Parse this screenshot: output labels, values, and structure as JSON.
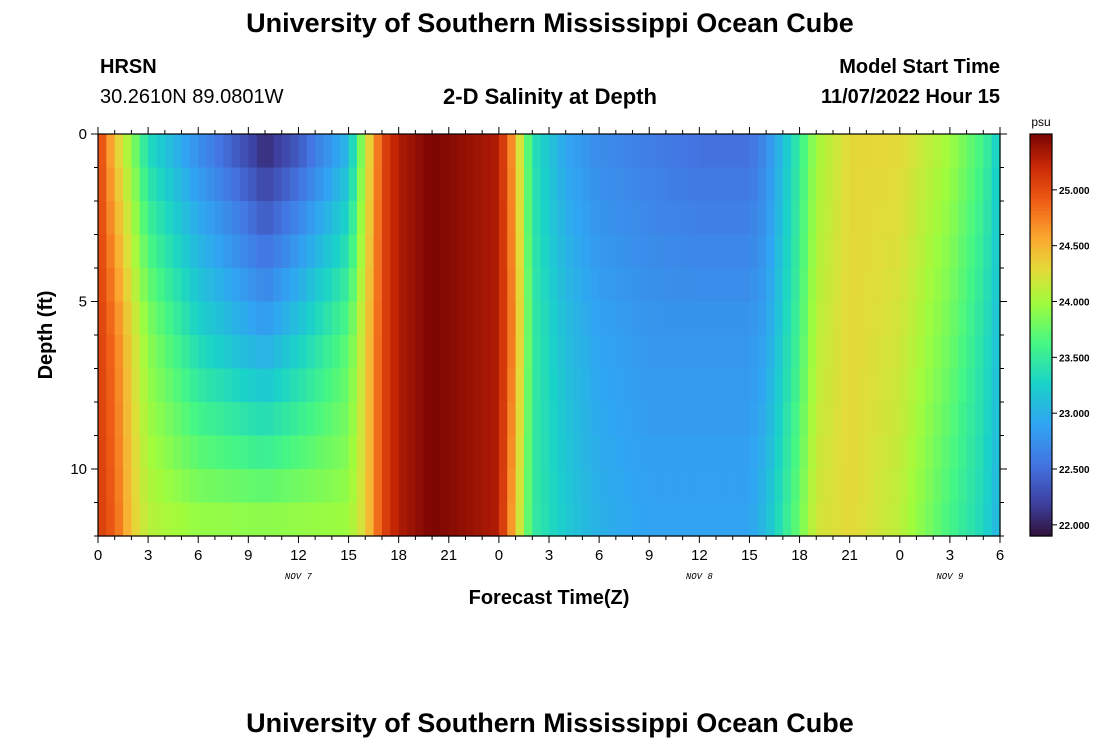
{
  "title": "University of Southern Mississippi Ocean Cube",
  "footer_title": "University of Southern Mississippi Ocean Cube",
  "station": {
    "id": "HRSN",
    "coords": "30.2610N  89.0801W"
  },
  "subtitle": "2-D Salinity at Depth",
  "model_start": {
    "label": "Model Start Time",
    "value": "11/07/2022 Hour 15"
  },
  "colorbar": {
    "unit": "psu",
    "tick_labels": [
      "25.000",
      "24.500",
      "24.000",
      "23.500",
      "23.000",
      "22.500",
      "22.000"
    ],
    "ticks": [
      25.0,
      24.5,
      24.0,
      23.5,
      23.0,
      22.5,
      22.0
    ],
    "range": [
      21.9,
      25.5
    ],
    "colormap": "turbo"
  },
  "chart_data": {
    "type": "heatmap",
    "title": "2-D Salinity at Depth",
    "xlabel": "Forecast Time(Z)",
    "ylabel": "Depth (ft)",
    "x_tick_labels": [
      "0",
      "3",
      "6",
      "9",
      "12",
      "15",
      "18",
      "21",
      "0",
      "3",
      "6",
      "9",
      "12",
      "15",
      "18",
      "21",
      "0",
      "3",
      "6"
    ],
    "x_range_hours": [
      0,
      54
    ],
    "x_range_labels": [
      "NOV 7 00Z",
      "NOV 9 06Z"
    ],
    "date_labels": [
      {
        "text": "NOV 7",
        "hour": 12
      },
      {
        "text": "NOV 8",
        "hour": 36
      },
      {
        "text": "NOV 9",
        "hour": 51
      }
    ],
    "y_tick_labels": [
      "0",
      "5",
      "10"
    ],
    "y_ticks": [
      0,
      5,
      10
    ],
    "y_range": [
      0,
      12
    ],
    "y_inverted": true,
    "value_unit": "psu",
    "value_range": [
      21.9,
      25.5
    ],
    "time_hours": [
      0,
      1,
      2,
      3,
      6,
      9,
      10,
      12,
      15,
      16,
      17,
      18,
      20,
      24,
      25,
      26,
      28,
      30,
      33,
      36,
      39,
      40,
      42,
      43,
      45,
      48,
      51,
      53,
      54
    ],
    "depths_ft": [
      0,
      6,
      12
    ],
    "salinity": [
      [
        25.1,
        24.4,
        23.9,
        23.3,
        22.7,
        22.2,
        22.0,
        22.3,
        23.0,
        24.1,
        25.0,
        25.3,
        25.5,
        25.3,
        24.5,
        23.4,
        22.9,
        22.7,
        22.6,
        22.5,
        22.5,
        22.7,
        23.5,
        24.0,
        24.3,
        24.3,
        24.0,
        23.6,
        23.2
      ],
      [
        25.1,
        24.8,
        24.3,
        23.9,
        23.3,
        23.0,
        22.9,
        23.2,
        23.7,
        24.3,
        25.0,
        25.3,
        25.5,
        25.3,
        24.6,
        23.5,
        23.1,
        22.9,
        22.8,
        22.8,
        22.8,
        22.9,
        23.6,
        24.1,
        24.3,
        24.2,
        23.8,
        23.4,
        23.1
      ],
      [
        25.1,
        24.9,
        24.4,
        24.1,
        24.0,
        24.0,
        24.0,
        24.0,
        24.0,
        24.3,
        25.0,
        25.3,
        25.5,
        25.3,
        24.4,
        23.5,
        23.2,
        23.0,
        22.9,
        22.9,
        22.9,
        23.1,
        23.8,
        24.2,
        24.3,
        24.1,
        23.6,
        23.3,
        23.0
      ]
    ]
  }
}
